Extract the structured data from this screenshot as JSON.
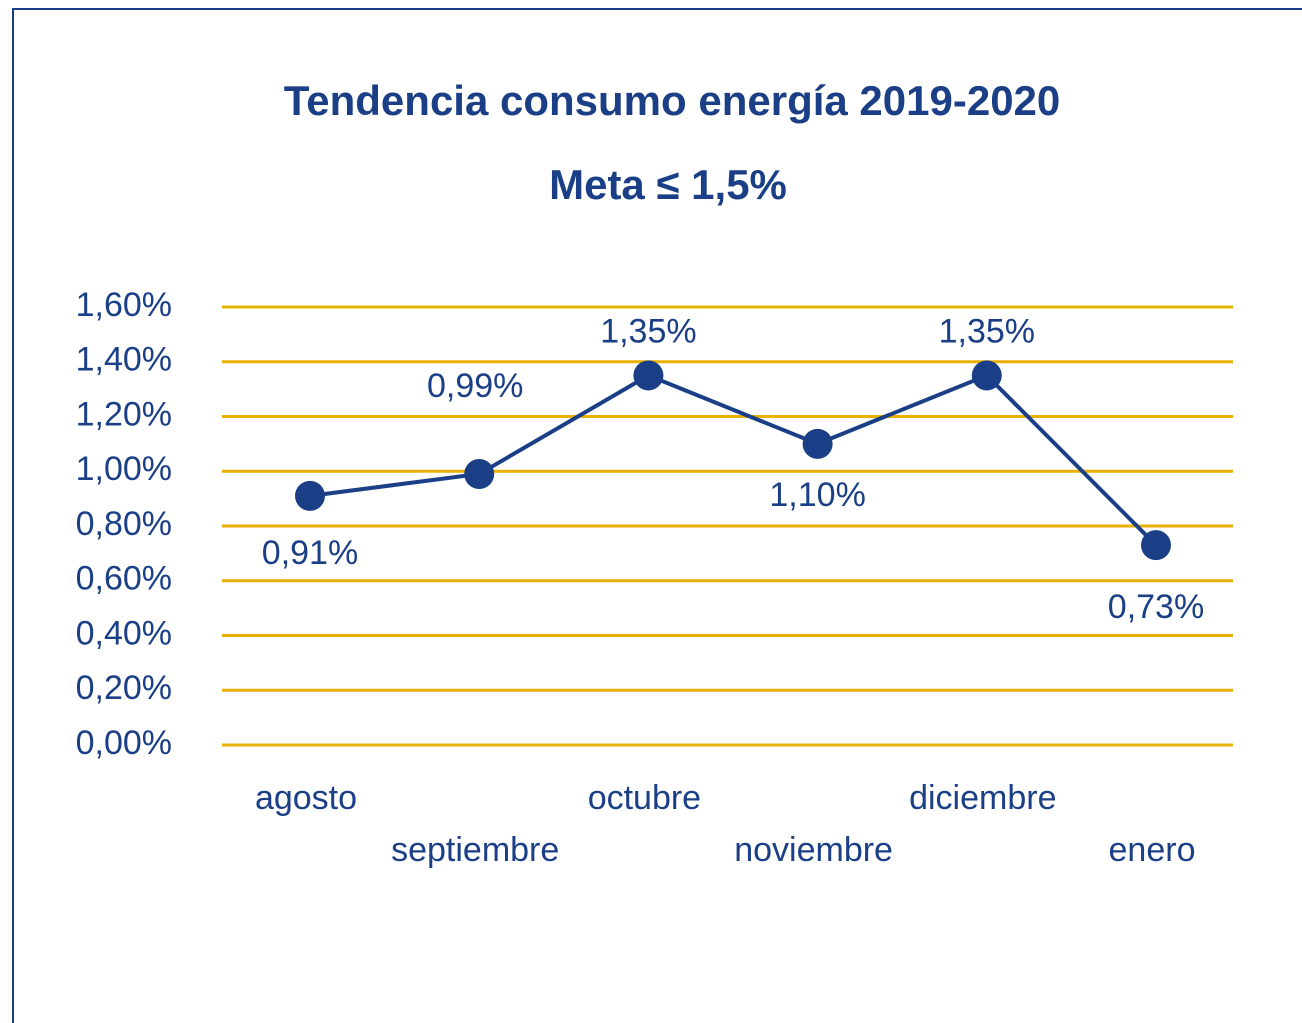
{
  "chart_data": {
    "type": "line",
    "title": "Tendencia consumo energía 2019-2020",
    "subtitle": "Meta ≤ 1,5%",
    "categories": [
      "agosto",
      "septiembre",
      "octubre",
      "noviembre",
      "diciembre",
      "enero"
    ],
    "values": [
      0.91,
      0.99,
      1.35,
      1.1,
      1.35,
      0.73
    ],
    "value_labels": [
      "0,91%",
      "0,99%",
      "1,35%",
      "1,10%",
      "1,35%",
      "0,73%"
    ],
    "color": "#1a3f87",
    "grid_color": "#e8b000",
    "ylim": [
      0,
      1.6
    ],
    "yticks": [
      {
        "value": 0,
        "label": "0,00%"
      },
      {
        "value": 0.2,
        "label": "0,20%"
      },
      {
        "value": 0.4,
        "label": "0,40%"
      },
      {
        "value": 0.6,
        "label": "0,60%"
      },
      {
        "value": 0.8,
        "label": "0,80%"
      },
      {
        "value": 1.0,
        "label": "1,00%"
      },
      {
        "value": 1.2,
        "label": "1,20%"
      },
      {
        "value": 1.4,
        "label": "1,40%"
      },
      {
        "value": 1.6,
        "label": "1,60%"
      }
    ],
    "grid": true
  }
}
